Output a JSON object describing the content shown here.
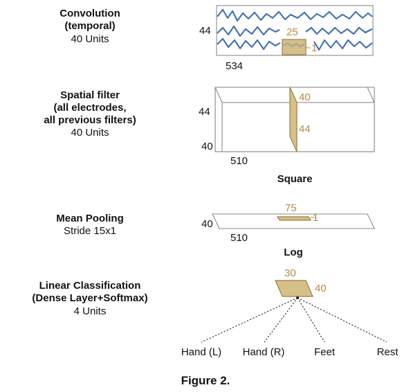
{
  "colors": {
    "accent": "#b5894a",
    "kernel_fill": "#d6c08a",
    "signal": "#3f6fb0"
  },
  "conv": {
    "title_lines": [
      "Convolution",
      "(temporal)"
    ],
    "units": "40 Units",
    "dim_height": "44",
    "dim_width": "534",
    "kernel_length": "25",
    "kernel_height": "1"
  },
  "spatial": {
    "title_lines": [
      "Spatial filter",
      "(all electrodes,",
      "all previous filters)"
    ],
    "units": "40 Units",
    "dim_height": "44",
    "dim_depth": "40",
    "dim_width": "510",
    "kernel_depth": "40",
    "kernel_height": "44"
  },
  "square_label": "Square",
  "pool": {
    "title": "Mean Pooling",
    "stride": "Stride 15x1",
    "dim_depth": "40",
    "dim_width": "510",
    "kernel_length": "75",
    "kernel_height": "1"
  },
  "log_label": "Log",
  "classifier": {
    "title_lines": [
      "Linear Classification",
      "(Dense Layer+Softmax)"
    ],
    "units": "4 Units",
    "dim_width": "30",
    "dim_depth": "40",
    "classes": [
      "Hand (L)",
      "Hand (R)",
      "Feet",
      "Rest"
    ]
  },
  "caption": "Figure 2."
}
